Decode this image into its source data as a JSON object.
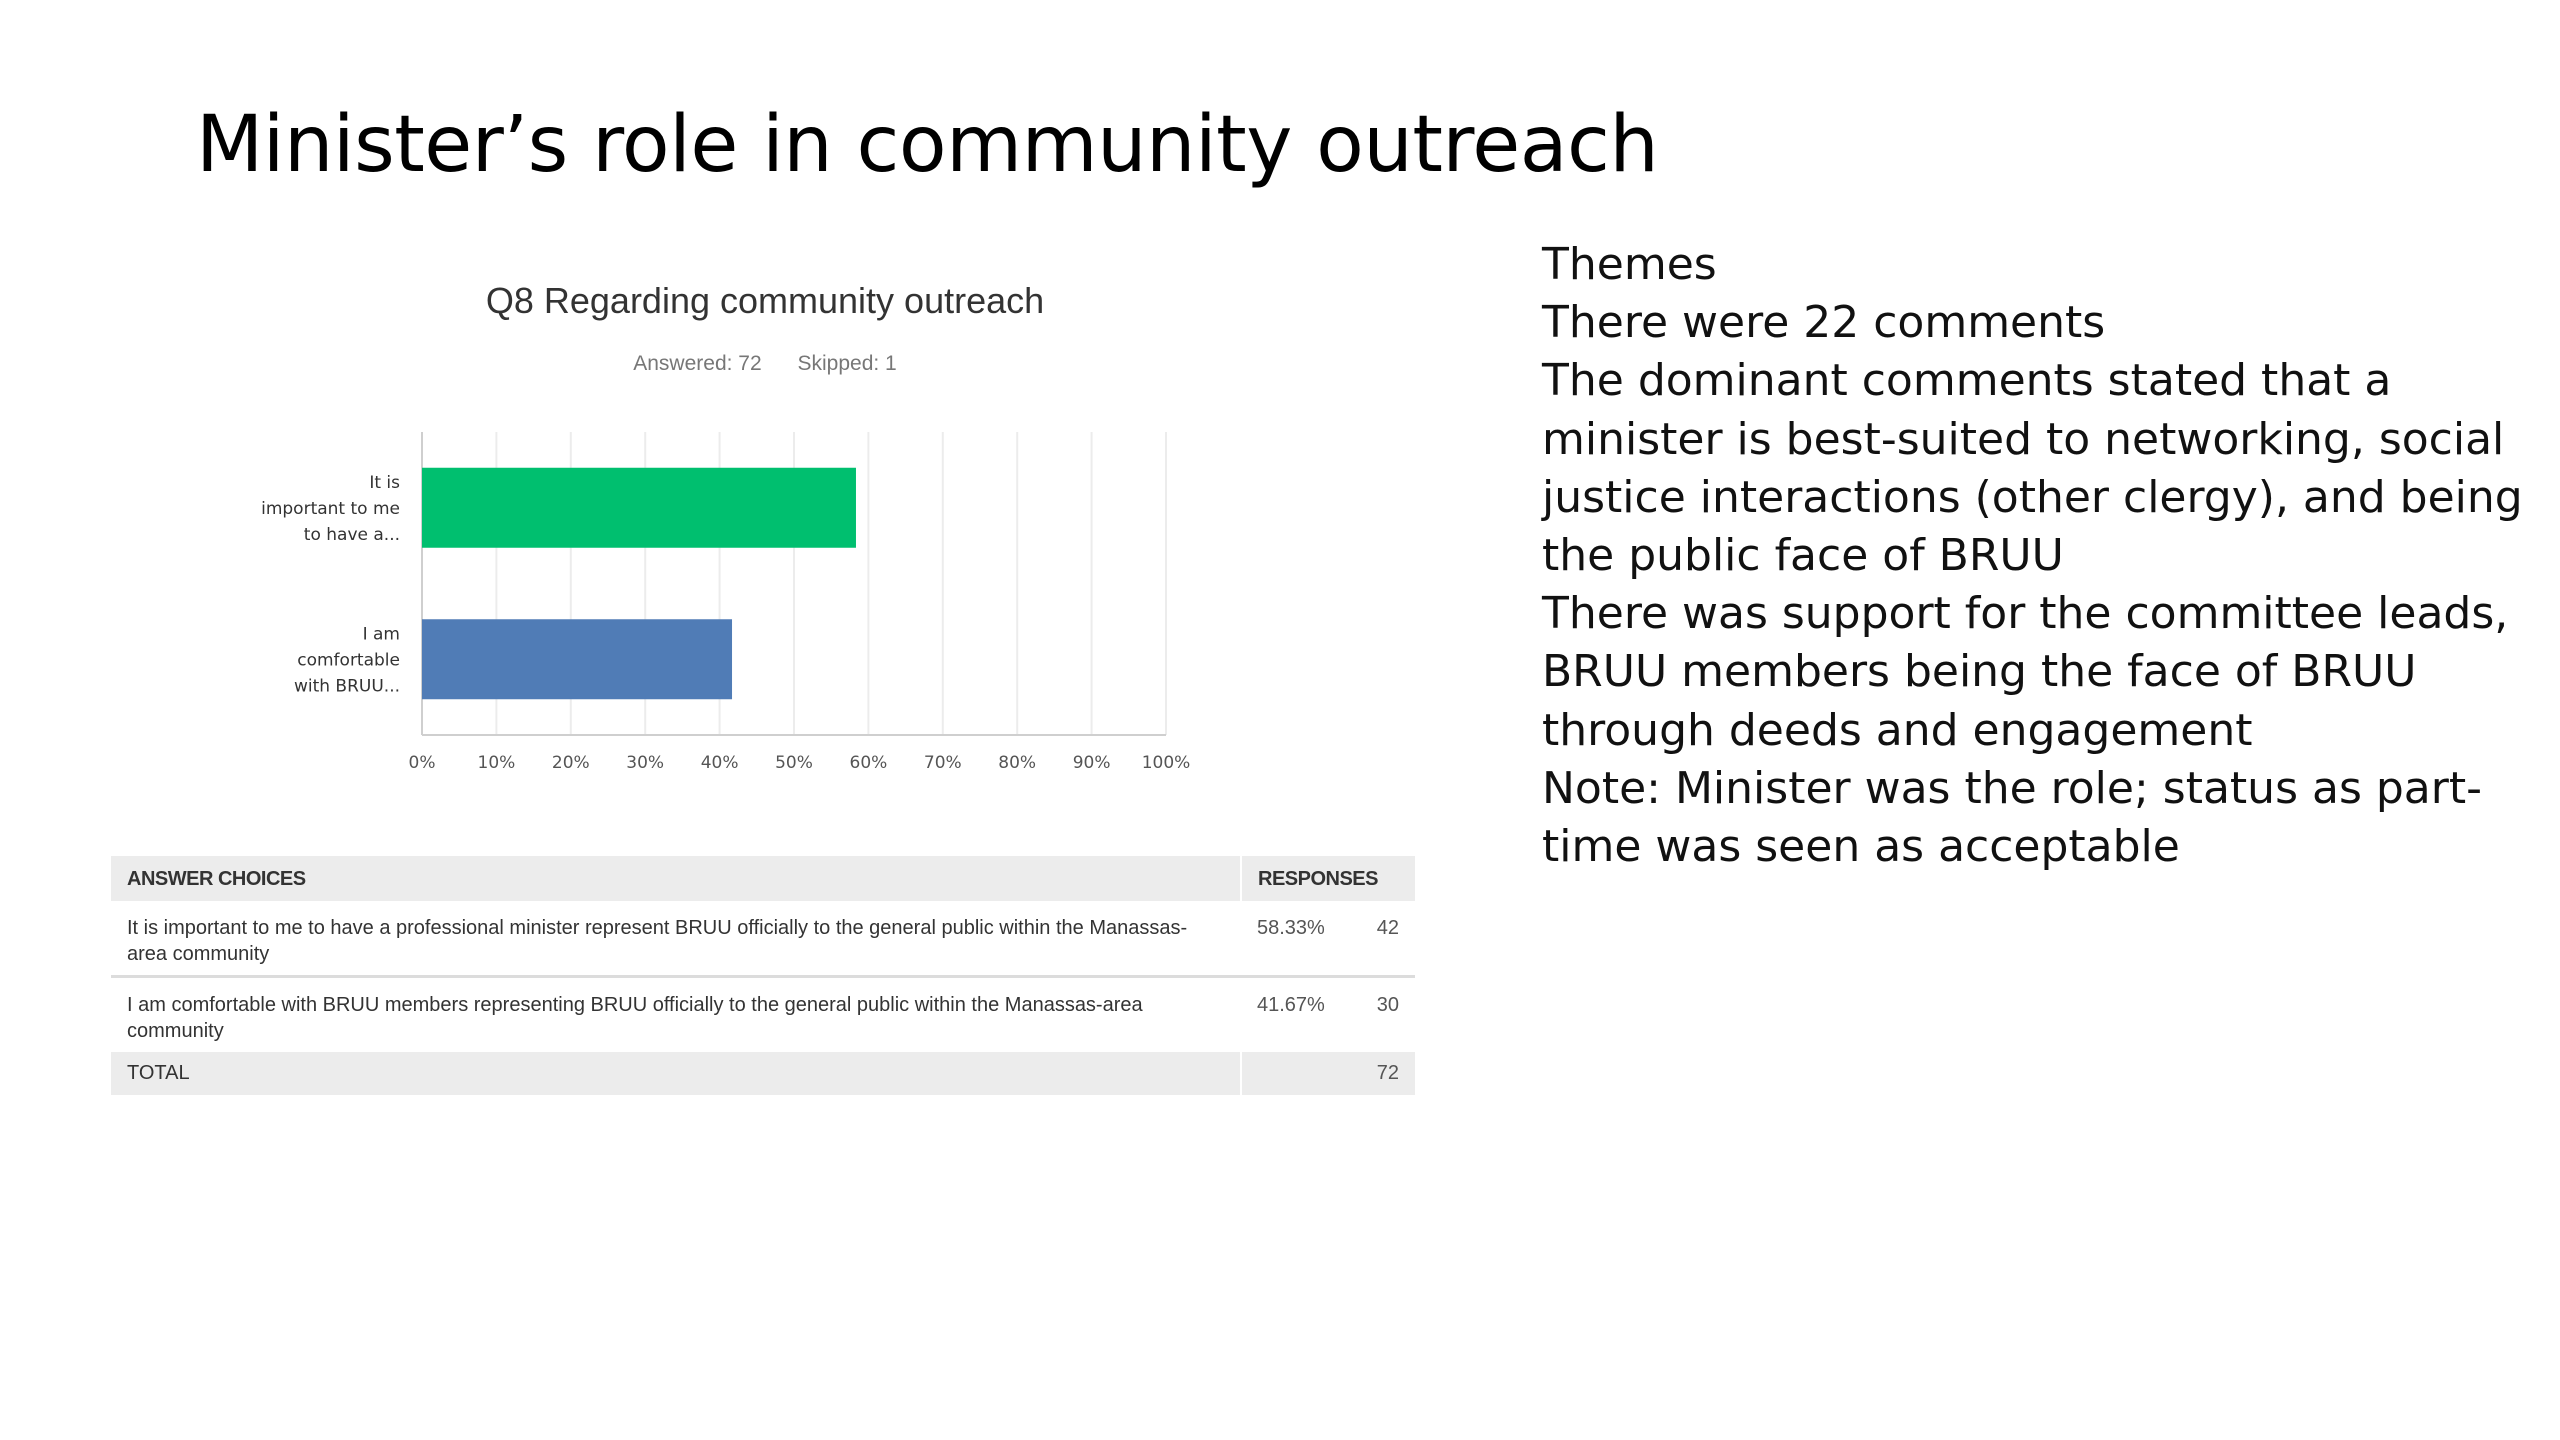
{
  "slide": {
    "title": "Minister’s role in community outreach"
  },
  "chart_data": {
    "type": "bar",
    "orientation": "horizontal",
    "title": "Q8 Regarding community outreach",
    "answered_label": "Answered: 72",
    "skipped_label": "Skipped: 1",
    "categories": [
      [
        "It is",
        "important to me",
        "to have a..."
      ],
      [
        "I am",
        "comfortable",
        "with BRUU..."
      ]
    ],
    "values": [
      58.33,
      41.67
    ],
    "colors": [
      "#00bf6f",
      "#507cb6"
    ],
    "xlim": [
      0,
      100
    ],
    "xticks": [
      "0%",
      "10%",
      "20%",
      "30%",
      "40%",
      "50%",
      "60%",
      "70%",
      "80%",
      "90%",
      "100%"
    ],
    "grid": true
  },
  "table": {
    "header_choices": "ANSWER CHOICES",
    "header_responses": "RESPONSES",
    "rows": [
      {
        "choice": "It is important to me to have a professional minister represent BRUU officially to the general public within the Manassas-area community",
        "percent": "58.33%",
        "count": "42"
      },
      {
        "choice": "I am comfortable with BRUU members representing BRUU officially to the general public within the Manassas-area community",
        "percent": "41.67%",
        "count": "30"
      }
    ],
    "total_label": "TOTAL",
    "total_count": "72"
  },
  "themes": {
    "lines": [
      "Themes",
      "There were 22 comments",
      "The dominant comments stated that a minister is best-suited to networking, social justice interactions (other clergy), and being the public face of BRUU",
      "There was support for the committee leads, BRUU members being the face of BRUU through deeds and engagement",
      "Note:  Minister was the role; status as part-time was seen as acceptable"
    ]
  }
}
